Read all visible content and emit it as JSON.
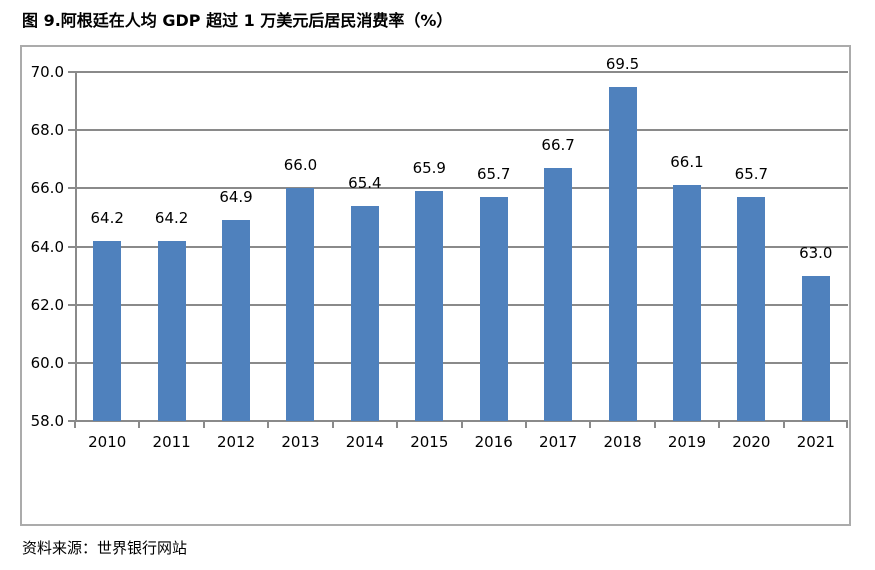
{
  "page": {
    "title": "图 9.阿根廷在人均 GDP 超过 1 万美元后居民消费率（%）",
    "source": "资料来源：世界银行网站"
  },
  "chart_data": {
    "type": "bar",
    "title": "图 9.阿根廷在人均 GDP 超过 1 万美元后居民消费率（%）",
    "categories": [
      "2010",
      "2011",
      "2012",
      "2013",
      "2014",
      "2015",
      "2016",
      "2017",
      "2018",
      "2019",
      "2020",
      "2021"
    ],
    "values": [
      64.2,
      64.2,
      64.9,
      66.0,
      65.4,
      65.9,
      65.7,
      66.7,
      69.5,
      66.1,
      65.7,
      63.0
    ],
    "xlabel": "",
    "ylabel": "",
    "ylim": [
      58.0,
      70.0
    ],
    "yticks": [
      "58.0",
      "60.0",
      "62.0",
      "64.0",
      "66.0",
      "68.0",
      "70.0"
    ],
    "grid": true,
    "legend": false,
    "value_labels_shown": true,
    "value_label_decimals": 1,
    "source_note": "资料来源：世界银行网站",
    "colors": {
      "bar": "#4F81BD",
      "gridline": "#8A8A8A",
      "frame_border": "#ABABAB",
      "text": "#000000"
    }
  }
}
